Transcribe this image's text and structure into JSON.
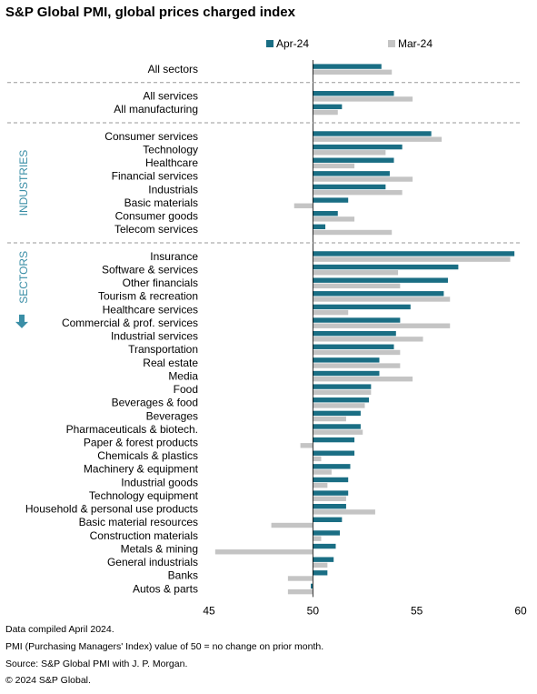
{
  "chart_data": {
    "type": "bar",
    "orientation": "horizontal",
    "title": "S&P Global PMI, global prices charged index",
    "legend_position": "top-right",
    "xlim": [
      45,
      60
    ],
    "xticks": [
      "45",
      "50",
      "55",
      "60"
    ],
    "reference_value": 50,
    "grid": false,
    "colors": {
      "Apr-24": "#1a6e84",
      "Mar-24": "#c4c4c4",
      "divider": "#999999",
      "side_label": "#3a8ea6"
    },
    "side_labels": [
      {
        "text": "INDUSTRIES",
        "group": "industries"
      },
      {
        "text": "SECTORS",
        "group": "sectors"
      }
    ],
    "sector_arrow_icon": "arrow-down-icon",
    "series": [
      {
        "name": "Apr-24",
        "values": [
          53.3,
          53.9,
          51.4,
          55.7,
          54.3,
          53.9,
          53.7,
          53.5,
          51.7,
          51.2,
          50.6,
          59.7,
          57.0,
          56.5,
          56.3,
          54.7,
          54.2,
          54.0,
          53.9,
          53.2,
          53.2,
          52.8,
          52.7,
          52.3,
          52.3,
          52.0,
          52.0,
          51.8,
          51.7,
          51.7,
          51.6,
          51.4,
          51.3,
          51.1,
          51.0,
          50.7,
          49.9
        ]
      },
      {
        "name": "Mar-24",
        "values": [
          53.8,
          54.8,
          51.2,
          56.2,
          53.5,
          52.0,
          54.8,
          54.3,
          49.1,
          52.0,
          53.8,
          59.5,
          54.1,
          54.2,
          56.6,
          51.7,
          56.6,
          55.3,
          54.2,
          54.2,
          54.8,
          52.8,
          52.5,
          51.6,
          52.4,
          49.4,
          50.4,
          50.9,
          50.7,
          51.6,
          53.0,
          48.0,
          50.4,
          45.3,
          50.7,
          48.8,
          48.8
        ]
      }
    ],
    "groups": [
      {
        "id": "all-sectors",
        "items": [
          "All sectors"
        ]
      },
      {
        "id": "services-manufacturing",
        "items": [
          "All services",
          "All manufacturing"
        ]
      },
      {
        "id": "industries",
        "items": [
          "Consumer services",
          "Technology",
          "Healthcare",
          "Financial services",
          "Industrials",
          "Basic materials",
          "Consumer goods",
          "Telecom services"
        ]
      },
      {
        "id": "sectors",
        "items": [
          "Insurance",
          "Software & services",
          "Other financials",
          "Tourism & recreation",
          "Healthcare services",
          "Commercial & prof. services",
          "Industrial services",
          "Transportation",
          "Real estate",
          "Media",
          "Food",
          "Beverages & food",
          "Beverages",
          "Pharmaceuticals & biotech.",
          "Paper & forest products",
          "Chemicals & plastics",
          "Machinery & equipment",
          "Industrial goods",
          "Technology equipment",
          "Household & personal use products",
          "Basic material resources",
          "Construction materials",
          "Metals & mining",
          "General industrials",
          "Banks",
          "Autos & parts"
        ]
      }
    ],
    "categories": [
      "All sectors",
      "All services",
      "All manufacturing",
      "Consumer services",
      "Technology",
      "Healthcare",
      "Financial services",
      "Industrials",
      "Basic materials",
      "Consumer goods",
      "Telecom services",
      "Insurance",
      "Software & services",
      "Other financials",
      "Tourism & recreation",
      "Healthcare services",
      "Commercial & prof. services",
      "Industrial services",
      "Transportation",
      "Real estate",
      "Media",
      "Food",
      "Beverages & food",
      "Beverages",
      "Pharmaceuticals & biotech.",
      "Paper & forest products",
      "Chemicals & plastics",
      "Machinery & equipment",
      "Industrial goods",
      "Technology equipment",
      "Household & personal use products",
      "Basic material resources",
      "Construction materials",
      "Metals & mining",
      "General industrials",
      "Banks",
      "Autos & parts"
    ]
  },
  "footer": {
    "line1": "Data compiled April 2024.",
    "line2": "PMI (Purchasing Managers' Index) value of 50 = no change on prior month.",
    "line3": "Source: S&P Global PMI with J. P. Morgan.",
    "line4": "© 2024 S&P Global."
  }
}
